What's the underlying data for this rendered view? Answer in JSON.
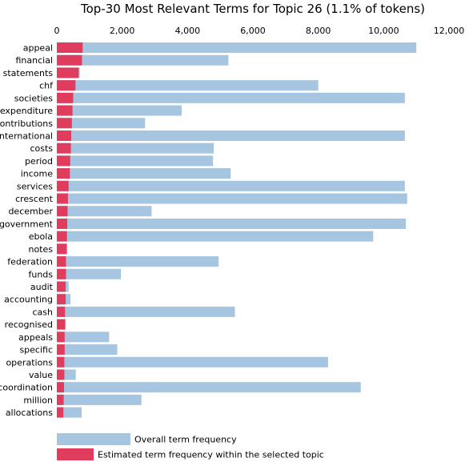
{
  "chart_data": {
    "type": "bar",
    "orientation": "horizontal",
    "stacked": false,
    "title": "Top-30 Most Relevant Terms for Topic 26 (1.1% of tokens)",
    "xlim": [
      0,
      12000
    ],
    "xticks": [
      0,
      2000,
      4000,
      6000,
      8000,
      10000,
      12000
    ],
    "xtick_labels": [
      "0",
      "2,000",
      "4,000",
      "6,000",
      "8,000",
      "10,000",
      "12,000"
    ],
    "x_axis_position": "top",
    "grid": false,
    "legend_position": "bottom-left",
    "colors": {
      "overall": "#a6c5e0",
      "topic": "#e03c5d"
    },
    "categories": [
      "appeal",
      "financial",
      "statements",
      "chf",
      "societies",
      "expenditure",
      "contributions",
      "international",
      "costs",
      "period",
      "income",
      "services",
      "crescent",
      "december",
      "government",
      "ebola",
      "notes",
      "federation",
      "funds",
      "audit",
      "accounting",
      "cash",
      "recognised",
      "appeals",
      "specific",
      "operations",
      "value",
      "coordination",
      "million",
      "allocations"
    ],
    "series": [
      {
        "name": "Overall term frequency",
        "values": [
          11000,
          5250,
          700,
          8000,
          10650,
          3820,
          2700,
          10650,
          4800,
          4780,
          5320,
          10650,
          10720,
          2900,
          10680,
          9680,
          320,
          4950,
          1960,
          360,
          420,
          5450,
          280,
          1600,
          1850,
          8300,
          580,
          9300,
          2590,
          760
        ]
      },
      {
        "name": "Estimated term frequency within the selected topic",
        "values": [
          790,
          770,
          670,
          570,
          500,
          480,
          460,
          440,
          430,
          410,
          400,
          360,
          340,
          330,
          320,
          310,
          300,
          280,
          280,
          270,
          270,
          250,
          250,
          240,
          240,
          230,
          230,
          220,
          210,
          200
        ]
      }
    ]
  },
  "legend": {
    "overall_label": "Overall term frequency",
    "topic_label": "Estimated term frequency within the selected topic"
  }
}
